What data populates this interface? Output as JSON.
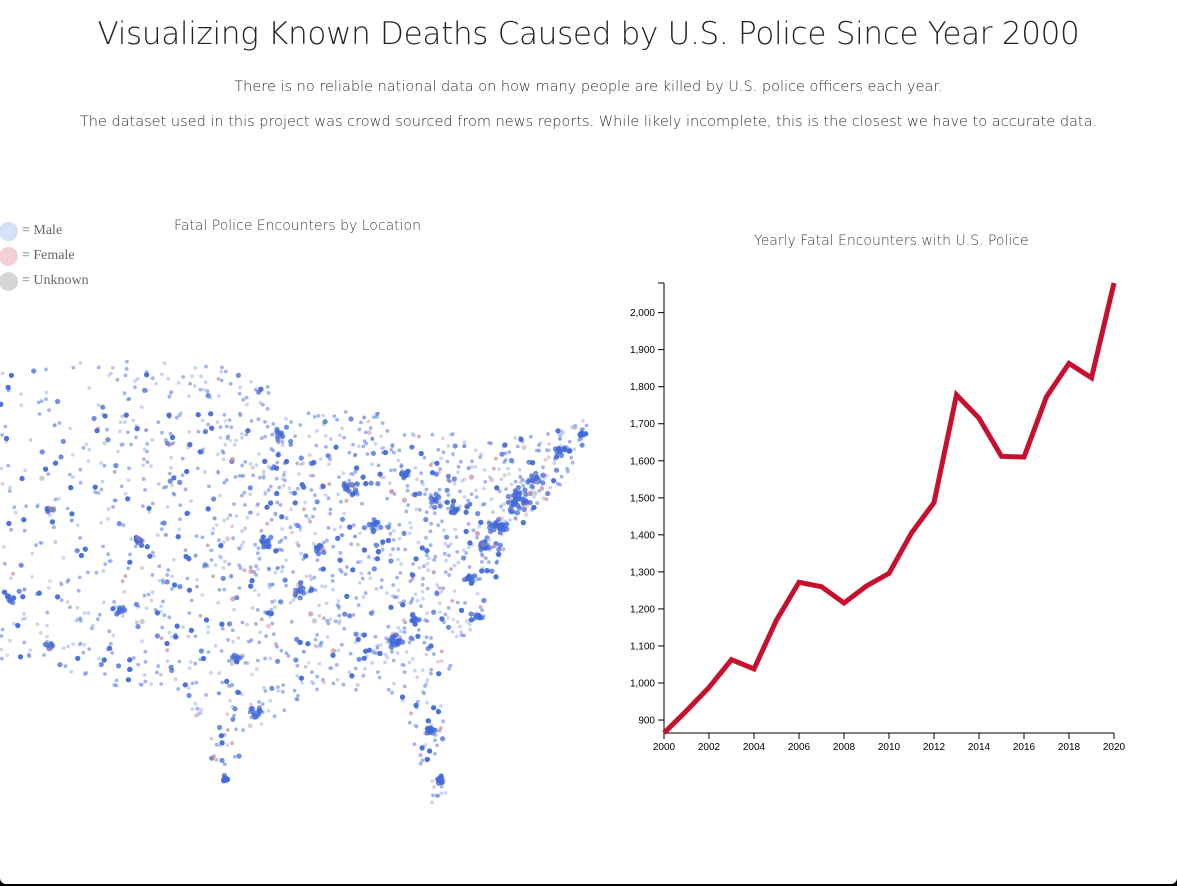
{
  "header": {
    "title": "Visualizing Known Deaths Caused by U.S. Police Since Year 2000",
    "subtitle_1": "There is no reliable national data on how many people are killed by U.S. police officers each year.",
    "subtitle_2": "The dataset used in this project was crowd sourced from news reports. While likely incomplete, this is the closest we have to accurate data."
  },
  "legend": {
    "items": [
      {
        "label": "= Male",
        "color": "#d4e1f7"
      },
      {
        "label": "= Female",
        "color": "#f4cfd5"
      },
      {
        "label": "= Unknown",
        "color": "#d6d6d6"
      }
    ]
  },
  "map": {
    "title": "Fatal Police Encounters by Location",
    "colors": {
      "male": "#4169d8",
      "female": "#c98a9a",
      "unknown": "#bbbbbb"
    }
  },
  "chart_data": {
    "type": "line",
    "title": "Yearly Fatal Encounters with U.S. Police",
    "xlabel": "",
    "ylabel": "",
    "x": [
      2000,
      2001,
      2002,
      2003,
      2004,
      2005,
      2006,
      2007,
      2008,
      2009,
      2010,
      2011,
      2012,
      2013,
      2014,
      2015,
      2016,
      2017,
      2018,
      2019,
      2020
    ],
    "series": [
      {
        "values": [
          865,
          925,
          988,
          1063,
          1038,
          1170,
          1272,
          1260,
          1216,
          1262,
          1296,
          1405,
          1487,
          1778,
          1715,
          1612,
          1610,
          1773,
          1863,
          1824,
          2080
        ]
      }
    ],
    "xlim": [
      2000,
      2020
    ],
    "ylim": [
      865,
      2080
    ],
    "yticks": [
      "900",
      "1,000",
      "1,100",
      "1,200",
      "1,300",
      "1,400",
      "1,500",
      "1,600",
      "1,700",
      "1,800",
      "1,900",
      "2,000"
    ],
    "xticks": [
      "2000",
      "2002",
      "2004",
      "2006",
      "2008",
      "2010",
      "2012",
      "2014",
      "2016",
      "2018",
      "2020"
    ],
    "line_color": "#c8102e",
    "grid": false
  }
}
